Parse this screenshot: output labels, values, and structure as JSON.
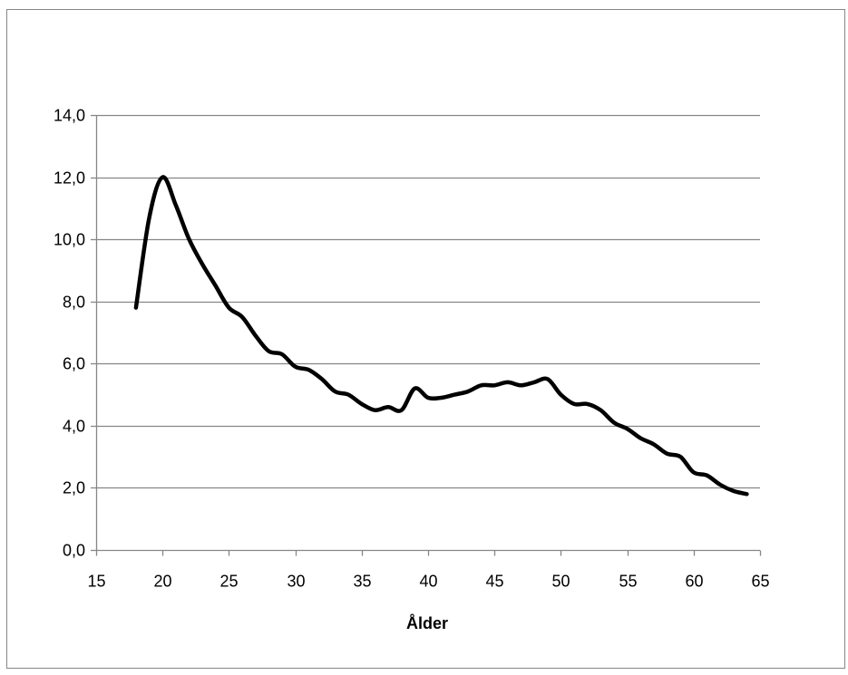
{
  "chart_data": {
    "type": "line",
    "title": "",
    "xlabel": "Ålder",
    "ylabel": "",
    "xlim": [
      15,
      65
    ],
    "ylim": [
      0,
      14
    ],
    "x_ticks": [
      15,
      20,
      25,
      30,
      35,
      40,
      45,
      50,
      55,
      60,
      65
    ],
    "y_ticks": [
      0,
      2,
      4,
      6,
      8,
      10,
      12,
      14
    ],
    "y_tick_labels": [
      "0,0",
      "2,0",
      "4,0",
      "6,0",
      "8,0",
      "10,0",
      "12,0",
      "14,0"
    ],
    "x_tick_labels": [
      "15",
      "20",
      "25",
      "30",
      "35",
      "40",
      "45",
      "50",
      "55",
      "60",
      "65"
    ],
    "grid": "horizontal",
    "legend": "none",
    "line_color": "#000000",
    "grid_color": "#868686",
    "border_color": "#868686",
    "series": [
      {
        "x": [
          18,
          19,
          20,
          21,
          22,
          23,
          24,
          25,
          26,
          27,
          28,
          29,
          30,
          31,
          32,
          33,
          34,
          35,
          36,
          37,
          38,
          39,
          40,
          41,
          42,
          43,
          44,
          45,
          46,
          47,
          48,
          49,
          50,
          51,
          52,
          53,
          54,
          55,
          56,
          57,
          58,
          59,
          60,
          61,
          62,
          63,
          64
        ],
        "values": [
          7.8,
          10.7,
          12.0,
          11.1,
          10.0,
          9.2,
          8.5,
          7.8,
          7.5,
          6.9,
          6.4,
          6.3,
          5.9,
          5.8,
          5.5,
          5.1,
          5.0,
          4.7,
          4.5,
          4.6,
          4.5,
          5.2,
          4.9,
          4.9,
          5.0,
          5.1,
          5.3,
          5.3,
          5.4,
          5.3,
          5.4,
          5.5,
          5.0,
          4.7,
          4.7,
          4.5,
          4.1,
          3.9,
          3.6,
          3.4,
          3.1,
          3.0,
          2.5,
          2.4,
          2.1,
          1.9,
          1.8
        ]
      }
    ]
  }
}
